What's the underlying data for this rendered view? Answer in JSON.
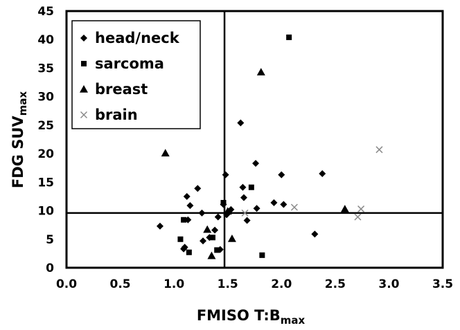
{
  "chart_data": {
    "type": "scatter",
    "xlabel": {
      "main": "FMISO T:B",
      "sub": "max"
    },
    "ylabel": {
      "main": "FDG SUV",
      "sub": "max"
    },
    "xlim": [
      0,
      3.5
    ],
    "ylim": [
      0,
      45
    ],
    "xticks": [
      "0.0",
      "0.5",
      "1.0",
      "1.5",
      "2.0",
      "2.5",
      "3.0",
      "3.5"
    ],
    "yticks": [
      "0",
      "5",
      "10",
      "15",
      "20",
      "25",
      "30",
      "35",
      "40",
      "45"
    ],
    "grid": false,
    "legend_position": "top-left",
    "reference_lines": {
      "x": 1.47,
      "y": 9.6
    },
    "series": [
      {
        "name": "head/neck",
        "marker": "diamond",
        "points": [
          [
            0.87,
            7.3
          ],
          [
            1.09,
            3.3
          ],
          [
            1.1,
            3.6
          ],
          [
            1.12,
            12.5
          ],
          [
            1.13,
            8.4
          ],
          [
            1.15,
            10.9
          ],
          [
            1.22,
            13.9
          ],
          [
            1.26,
            9.6
          ],
          [
            1.27,
            4.7
          ],
          [
            1.33,
            5.3
          ],
          [
            1.38,
            6.6
          ],
          [
            1.41,
            8.9
          ],
          [
            1.43,
            3.2
          ],
          [
            1.46,
            11.1
          ],
          [
            1.48,
            16.3
          ],
          [
            1.49,
            9.3
          ],
          [
            1.53,
            10.2
          ],
          [
            1.62,
            25.4
          ],
          [
            1.64,
            14.1
          ],
          [
            1.65,
            12.3
          ],
          [
            1.68,
            8.3
          ],
          [
            1.76,
            18.3
          ],
          [
            1.77,
            10.4
          ],
          [
            1.93,
            11.4
          ],
          [
            2.0,
            16.3
          ],
          [
            2.02,
            11.1
          ],
          [
            2.31,
            5.9
          ],
          [
            2.38,
            16.5
          ]
        ]
      },
      {
        "name": "sarcoma",
        "marker": "square",
        "points": [
          [
            1.06,
            5.0
          ],
          [
            1.09,
            8.4
          ],
          [
            1.14,
            2.7
          ],
          [
            1.36,
            5.3
          ],
          [
            1.4,
            3.1
          ],
          [
            1.46,
            11.4
          ],
          [
            1.72,
            14.1
          ],
          [
            1.82,
            2.2
          ],
          [
            2.07,
            40.4
          ]
        ]
      },
      {
        "name": "breast",
        "marker": "triangle",
        "points": [
          [
            0.92,
            20.1
          ],
          [
            1.31,
            6.7
          ],
          [
            1.35,
            2.1
          ],
          [
            1.5,
            9.9
          ],
          [
            1.54,
            5.1
          ],
          [
            1.81,
            34.3
          ],
          [
            2.59,
            10.3
          ]
        ]
      },
      {
        "name": "brain",
        "marker": "x",
        "points": [
          [
            1.66,
            9.6
          ],
          [
            2.12,
            10.6
          ],
          [
            2.71,
            8.9
          ],
          [
            2.74,
            10.3
          ],
          [
            2.91,
            20.7
          ]
        ]
      }
    ]
  }
}
